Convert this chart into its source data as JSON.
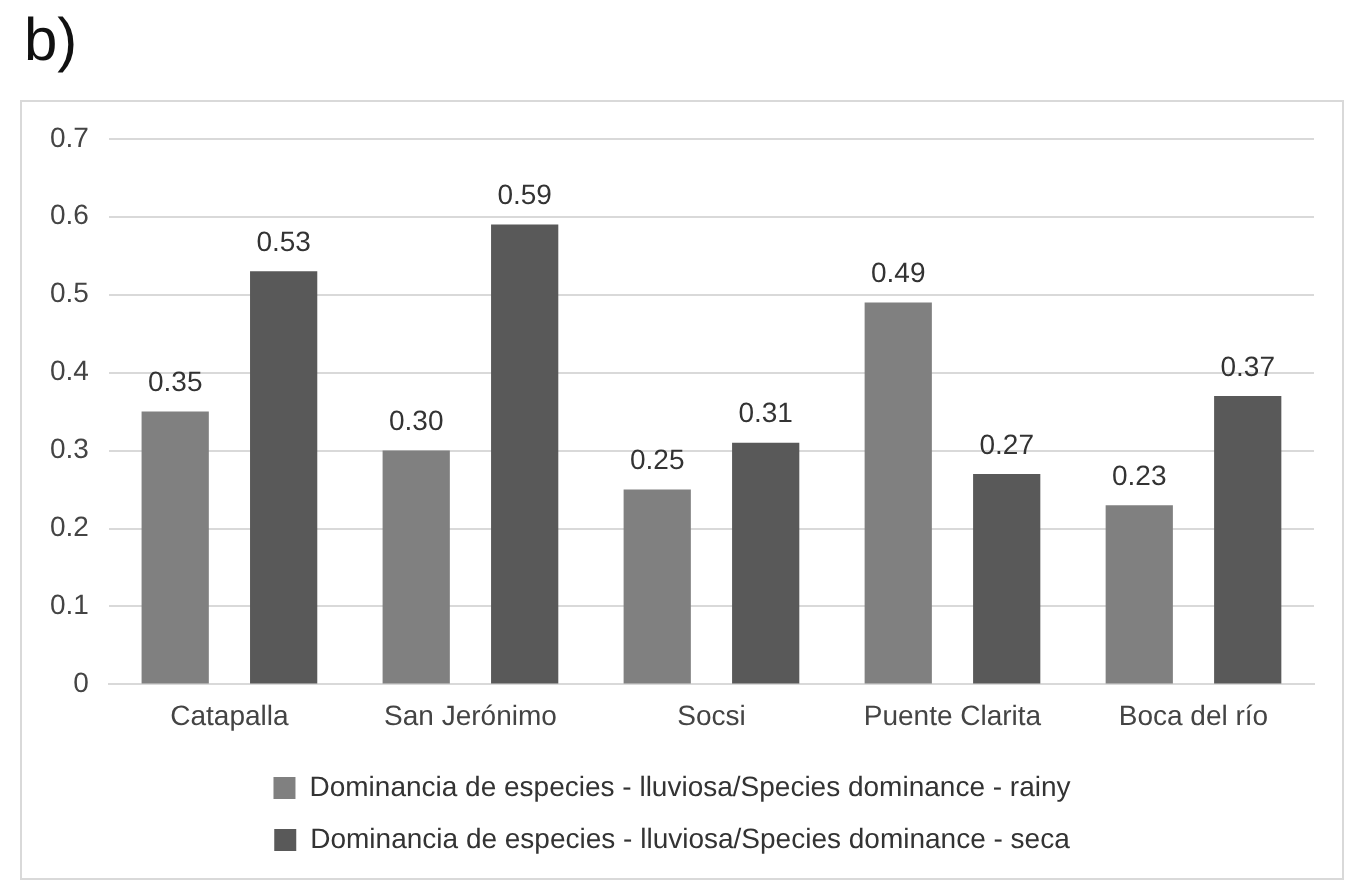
{
  "chart_data": {
    "type": "bar",
    "title": "b)",
    "categories": [
      "Catapalla",
      "San Jerónimo",
      "Socsi",
      "Puente Clarita",
      "Boca del río"
    ],
    "series": [
      {
        "name": "Dominancia de especies - lluviosa/Species dominance - rainy",
        "color": "#808080",
        "values": [
          0.35,
          0.3,
          0.25,
          0.49,
          0.23
        ],
        "value_labels": [
          "0.35",
          "0.30",
          "0.25",
          "0.49",
          "0.23"
        ]
      },
      {
        "name": "Dominancia de especies - lluviosa/Species dominance - seca",
        "color": "#595959",
        "values": [
          0.53,
          0.59,
          0.31,
          0.27,
          0.37
        ],
        "value_labels": [
          "0.53",
          "0.59",
          "0.31",
          "0.27",
          "0.37"
        ]
      }
    ],
    "ylim": [
      0,
      0.7
    ],
    "yticks": [
      0,
      0.1,
      0.2,
      0.3,
      0.4,
      0.5,
      0.6,
      0.7
    ],
    "grid": "y",
    "legend": "bottom"
  }
}
